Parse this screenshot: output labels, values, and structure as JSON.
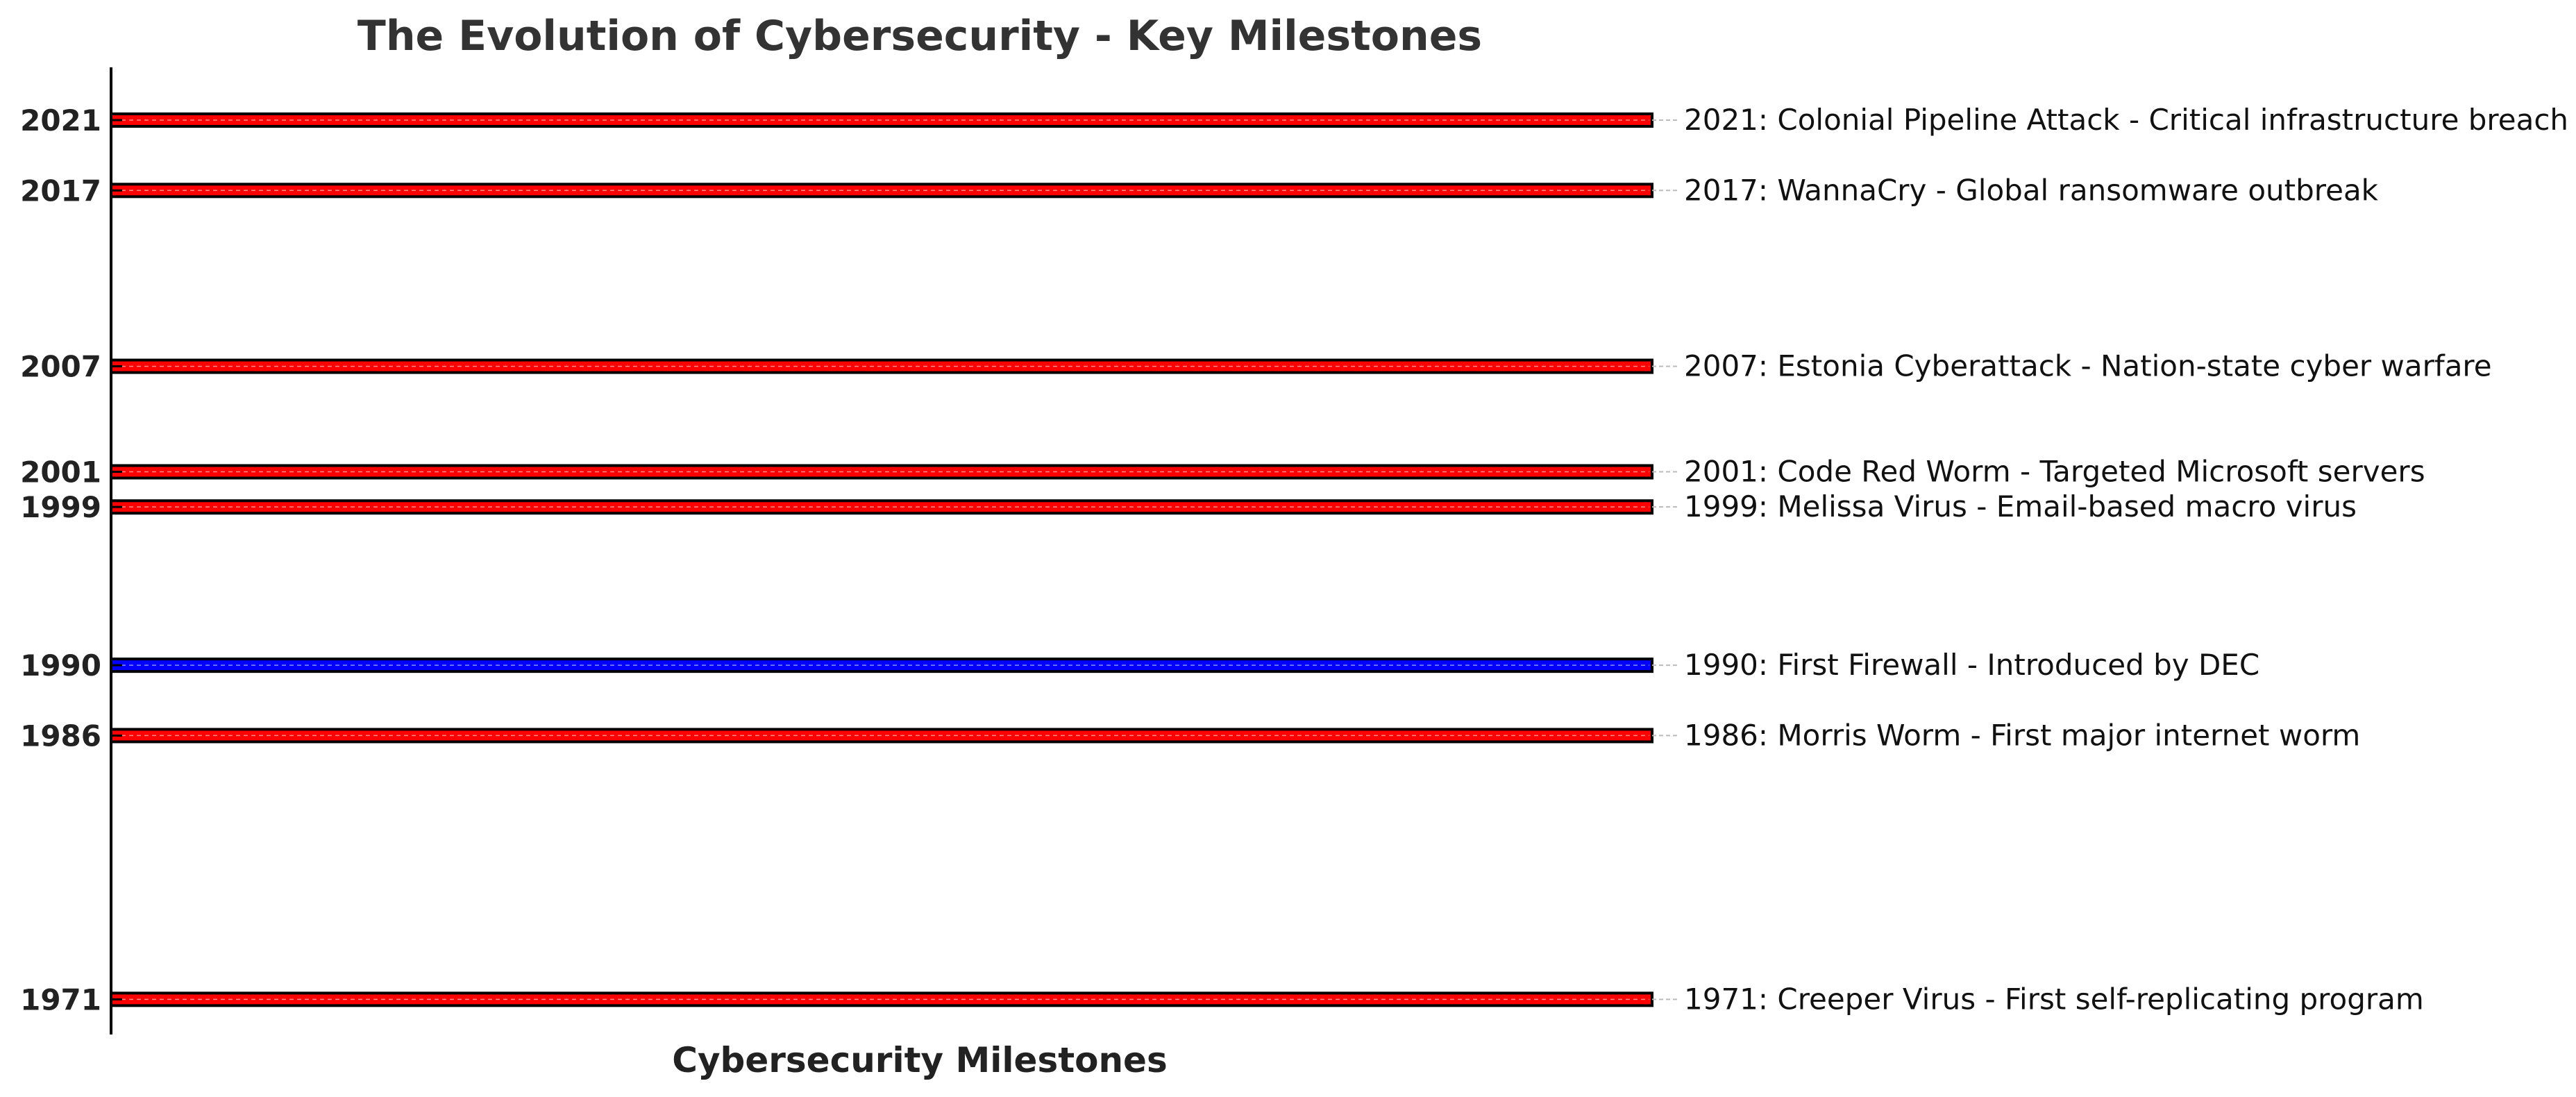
{
  "chart_data": {
    "type": "bar",
    "orientation": "horizontal",
    "title": "The Evolution of Cybersecurity - Key Milestones",
    "xlabel": "Cybersecurity Milestones",
    "ylabel": "",
    "ylim": [
      1969,
      2024
    ],
    "grid": false,
    "legend": "none",
    "colors": {
      "attack": "#ff0000",
      "defense": "#0000ff",
      "edge": "#000000",
      "guide": "#bbbbbb"
    },
    "events": [
      {
        "year": 1971,
        "tick": "1971",
        "category": "attack",
        "label": "1971: Creeper Virus - First self-replicating program"
      },
      {
        "year": 1986,
        "tick": "1986",
        "category": "attack",
        "label": "1986: Morris Worm - First major internet worm"
      },
      {
        "year": 1990,
        "tick": "1990",
        "category": "defense",
        "label": "1990: First Firewall - Introduced by DEC"
      },
      {
        "year": 1999,
        "tick": "1999",
        "category": "attack",
        "label": "1999: Melissa Virus - Email-based macro virus"
      },
      {
        "year": 2001,
        "tick": "2001",
        "category": "attack",
        "label": "2001: Code Red Worm - Targeted Microsoft servers"
      },
      {
        "year": 2007,
        "tick": "2007",
        "category": "attack",
        "label": "2007: Estonia Cyberattack - Nation-state cyber warfare"
      },
      {
        "year": 2017,
        "tick": "2017",
        "category": "attack",
        "label": "2017: WannaCry - Global ransomware outbreak"
      },
      {
        "year": 2021,
        "tick": "2021",
        "category": "attack",
        "label": "2021: Colonial Pipeline Attack - Critical infrastructure breach"
      }
    ]
  }
}
